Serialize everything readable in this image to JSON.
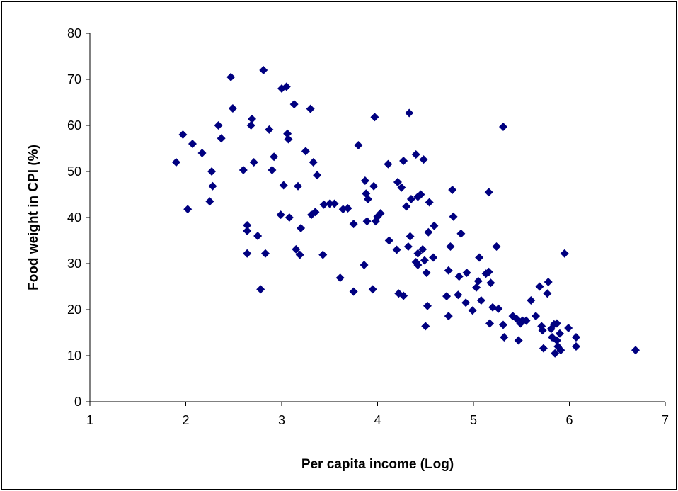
{
  "chart_data": {
    "type": "scatter",
    "title": "",
    "xlabel": "Per capita income (Log)",
    "ylabel": "Food weight in CPI (%)",
    "xlim": [
      1,
      7
    ],
    "ylim": [
      0,
      80
    ],
    "xticks": [
      1,
      2,
      3,
      4,
      5,
      6,
      7
    ],
    "yticks": [
      0,
      10,
      20,
      30,
      40,
      50,
      60,
      70,
      80
    ],
    "grid": false,
    "legend": "none",
    "marker": "diamond",
    "marker_color": "#000080",
    "series": [
      {
        "points": [
          [
            1.9,
            52
          ],
          [
            1.97,
            58
          ],
          [
            2.02,
            41.8
          ],
          [
            2.07,
            56
          ],
          [
            2.17,
            54
          ],
          [
            2.25,
            43.5
          ],
          [
            2.27,
            50
          ],
          [
            2.28,
            46.8
          ],
          [
            2.34,
            60
          ],
          [
            2.37,
            57.2
          ],
          [
            2.47,
            70.5
          ],
          [
            2.49,
            63.7
          ],
          [
            2.6,
            50.3
          ],
          [
            2.64,
            38.3
          ],
          [
            2.64,
            37.1
          ],
          [
            2.64,
            32.2
          ],
          [
            2.68,
            60
          ],
          [
            2.69,
            61.4
          ],
          [
            2.71,
            52
          ],
          [
            2.75,
            36
          ],
          [
            2.78,
            24.4
          ],
          [
            2.81,
            72
          ],
          [
            2.83,
            32.2
          ],
          [
            2.87,
            59.1
          ],
          [
            2.9,
            50.3
          ],
          [
            2.92,
            53.2
          ],
          [
            2.99,
            40.6
          ],
          [
            3.0,
            68
          ],
          [
            3.02,
            47
          ],
          [
            3.05,
            68.4
          ],
          [
            3.06,
            58.2
          ],
          [
            3.07,
            57
          ],
          [
            3.08,
            40
          ],
          [
            3.13,
            64.6
          ],
          [
            3.15,
            33.1
          ],
          [
            3.17,
            46.8
          ],
          [
            3.19,
            31.9
          ],
          [
            3.2,
            37.7
          ],
          [
            3.25,
            54.4
          ],
          [
            3.3,
            63.6
          ],
          [
            3.31,
            40.6
          ],
          [
            3.33,
            52
          ],
          [
            3.35,
            41.2
          ],
          [
            3.37,
            49.2
          ],
          [
            3.43,
            31.9
          ],
          [
            3.44,
            42.8
          ],
          [
            3.5,
            43
          ],
          [
            3.55,
            43
          ],
          [
            3.61,
            26.9
          ],
          [
            3.64,
            41.8
          ],
          [
            3.69,
            42
          ],
          [
            3.75,
            23.9
          ],
          [
            3.75,
            38.6
          ],
          [
            3.8,
            55.7
          ],
          [
            3.86,
            29.7
          ],
          [
            3.87,
            48
          ],
          [
            3.88,
            45.2
          ],
          [
            3.89,
            39.2
          ],
          [
            3.9,
            44
          ],
          [
            3.95,
            24.4
          ],
          [
            3.96,
            46.8
          ],
          [
            3.97,
            61.8
          ],
          [
            3.98,
            39.2
          ],
          [
            4.0,
            40.2
          ],
          [
            4.03,
            40.9
          ],
          [
            4.11,
            51.6
          ],
          [
            4.12,
            35
          ],
          [
            4.2,
            33
          ],
          [
            4.21,
            47.7
          ],
          [
            4.22,
            23.5
          ],
          [
            4.25,
            46.5
          ],
          [
            4.27,
            23
          ],
          [
            4.27,
            52.3
          ],
          [
            4.3,
            42.4
          ],
          [
            4.32,
            33.7
          ],
          [
            4.33,
            62.7
          ],
          [
            4.34,
            35.9
          ],
          [
            4.35,
            44
          ],
          [
            4.4,
            53.7
          ],
          [
            4.4,
            30.3
          ],
          [
            4.42,
            29.7
          ],
          [
            4.42,
            44.5
          ],
          [
            4.42,
            32.2
          ],
          [
            4.45,
            45
          ],
          [
            4.47,
            33.1
          ],
          [
            4.48,
            52.6
          ],
          [
            4.49,
            30.7
          ],
          [
            4.5,
            16.4
          ],
          [
            4.51,
            28
          ],
          [
            4.52,
            20.8
          ],
          [
            4.53,
            36.8
          ],
          [
            4.54,
            43.3
          ],
          [
            4.58,
            31.3
          ],
          [
            4.59,
            38.2
          ],
          [
            4.72,
            22.9
          ],
          [
            4.74,
            28.5
          ],
          [
            4.74,
            18.6
          ],
          [
            4.76,
            33.7
          ],
          [
            4.78,
            46
          ],
          [
            4.79,
            40.2
          ],
          [
            4.84,
            23.2
          ],
          [
            4.85,
            27.2
          ],
          [
            4.87,
            36.5
          ],
          [
            4.92,
            21.5
          ],
          [
            4.93,
            28
          ],
          [
            4.99,
            19.8
          ],
          [
            5.03,
            24.8
          ],
          [
            5.05,
            26.2
          ],
          [
            5.06,
            31.3
          ],
          [
            5.08,
            22
          ],
          [
            5.13,
            27.8
          ],
          [
            5.16,
            28.2
          ],
          [
            5.16,
            45.5
          ],
          [
            5.17,
            17
          ],
          [
            5.18,
            25.8
          ],
          [
            5.2,
            20.5
          ],
          [
            5.24,
            33.7
          ],
          [
            5.26,
            20.2
          ],
          [
            5.31,
            59.7
          ],
          [
            5.31,
            16.7
          ],
          [
            5.32,
            14
          ],
          [
            5.41,
            18.6
          ],
          [
            5.45,
            18
          ],
          [
            5.47,
            13.3
          ],
          [
            5.49,
            17
          ],
          [
            5.51,
            17.6
          ],
          [
            5.55,
            17.6
          ],
          [
            5.6,
            22
          ],
          [
            5.65,
            18.6
          ],
          [
            5.69,
            25
          ],
          [
            5.71,
            16.4
          ],
          [
            5.72,
            15.5
          ],
          [
            5.73,
            11.6
          ],
          [
            5.77,
            23.5
          ],
          [
            5.78,
            26
          ],
          [
            5.81,
            15.8
          ],
          [
            5.82,
            14
          ],
          [
            5.84,
            16.8
          ],
          [
            5.85,
            10.5
          ],
          [
            5.87,
            13.3
          ],
          [
            5.87,
            17
          ],
          [
            5.88,
            12
          ],
          [
            5.9,
            14.8
          ],
          [
            5.91,
            11.2
          ],
          [
            5.95,
            32.2
          ],
          [
            5.99,
            16
          ],
          [
            6.07,
            14
          ],
          [
            6.07,
            12
          ],
          [
            6.69,
            11.2
          ]
        ]
      }
    ]
  }
}
